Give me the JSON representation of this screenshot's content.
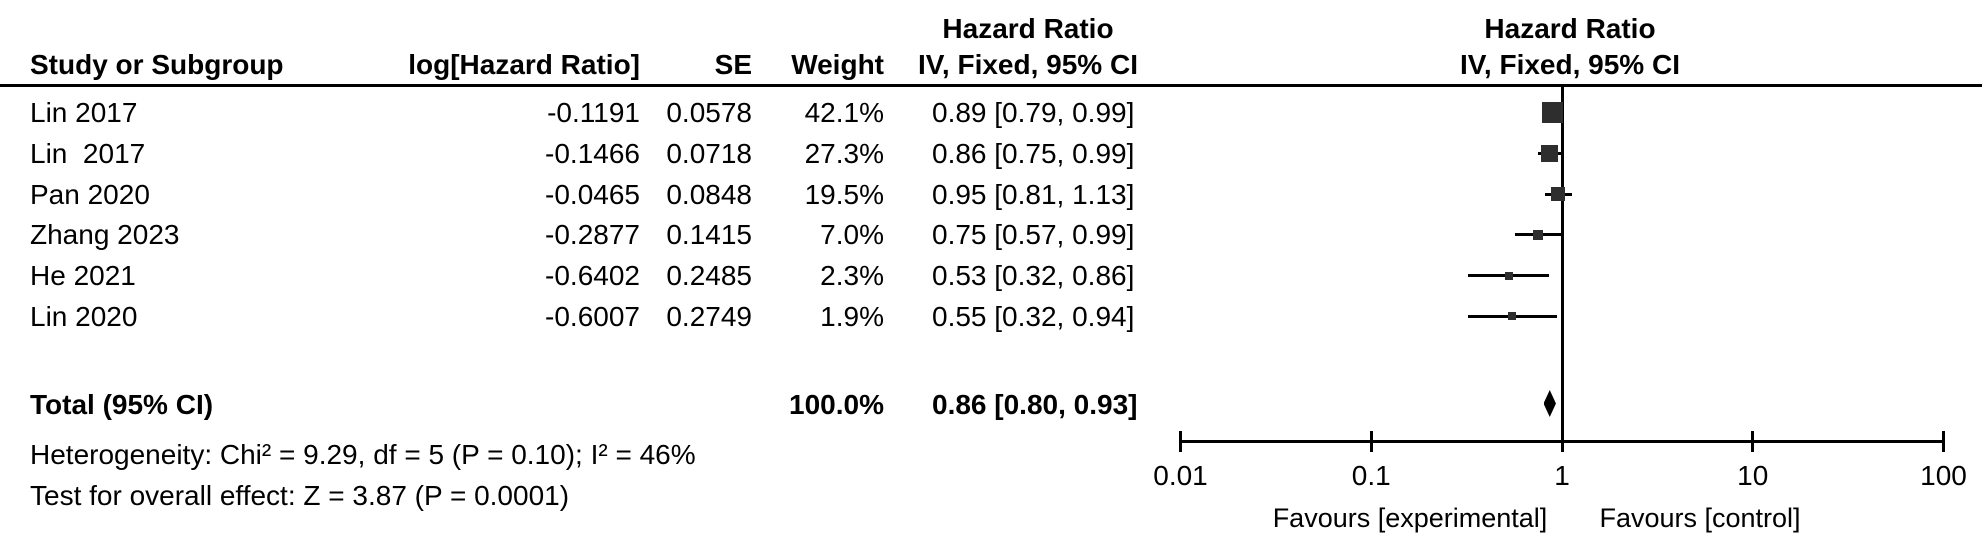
{
  "table": {
    "hr_header_line1": "Hazard Ratio",
    "col_headers": {
      "study": "Study or Subgroup",
      "log_hr": "log[Hazard Ratio]",
      "se": "SE",
      "weight": "Weight",
      "ci": "IV, Fixed, 95% CI"
    },
    "rows": [
      {
        "study": "Lin 2017",
        "log_hr": "-0.1191",
        "se": "0.0578",
        "weight": "42.1%",
        "ci": "0.89 [0.79, 0.99]"
      },
      {
        "study": "Lin  2017",
        "log_hr": "-0.1466",
        "se": "0.0718",
        "weight": "27.3%",
        "ci": "0.86 [0.75, 0.99]"
      },
      {
        "study": "Pan 2020",
        "log_hr": "-0.0465",
        "se": "0.0848",
        "weight": "19.5%",
        "ci": "0.95 [0.81, 1.13]"
      },
      {
        "study": "Zhang 2023",
        "log_hr": "-0.2877",
        "se": "0.1415",
        "weight": "7.0%",
        "ci": "0.75 [0.57, 0.99]"
      },
      {
        "study": "He 2021",
        "log_hr": "-0.6402",
        "se": "0.2485",
        "weight": "2.3%",
        "ci": "0.53 [0.32, 0.86]"
      },
      {
        "study": "Lin 2020",
        "log_hr": "-0.6007",
        "se": "0.2749",
        "weight": "1.9%",
        "ci": "0.55 [0.32, 0.94]"
      }
    ],
    "total_row": {
      "label": "Total (95% CI)",
      "weight": "100.0%",
      "ci": "0.86 [0.80, 0.93]"
    },
    "footnotes": {
      "heterogeneity": "Heterogeneity: Chi² = 9.29, df = 5 (P = 0.10); I² = 46%",
      "overall_effect": "Test for overall effect: Z = 3.87 (P = 0.0001)"
    }
  },
  "plot": {
    "header_line1": "Hazard Ratio",
    "header_line2": "IV, Fixed, 95% CI",
    "tick_labels": [
      "0.01",
      "0.1",
      "1",
      "10",
      "100"
    ],
    "favours_left": "Favours [experimental]",
    "favours_right": "Favours [control]"
  },
  "colors": {
    "text": "#000000",
    "square": "#2e2e2e",
    "line": "#000000"
  },
  "chart_data": {
    "type": "forest",
    "effect_measure": "Hazard Ratio",
    "model": "IV, Fixed, 95% CI",
    "x_scale": "log10",
    "xlim": [
      0.01,
      100
    ],
    "x_ticks": [
      0.01,
      0.1,
      1,
      10,
      100
    ],
    "null_line": 1,
    "studies": [
      {
        "label": "Lin 2017",
        "log_hr": -0.1191,
        "se": 0.0578,
        "weight_pct": 42.1,
        "hr": 0.89,
        "ci_low": 0.79,
        "ci_high": 0.99
      },
      {
        "label": "Lin  2017",
        "log_hr": -0.1466,
        "se": 0.0718,
        "weight_pct": 27.3,
        "hr": 0.86,
        "ci_low": 0.75,
        "ci_high": 0.99
      },
      {
        "label": "Pan 2020",
        "log_hr": -0.0465,
        "se": 0.0848,
        "weight_pct": 19.5,
        "hr": 0.95,
        "ci_low": 0.81,
        "ci_high": 1.13
      },
      {
        "label": "Zhang 2023",
        "log_hr": -0.2877,
        "se": 0.1415,
        "weight_pct": 7.0,
        "hr": 0.75,
        "ci_low": 0.57,
        "ci_high": 0.99
      },
      {
        "label": "He 2021",
        "log_hr": -0.6402,
        "se": 0.2485,
        "weight_pct": 2.3,
        "hr": 0.53,
        "ci_low": 0.32,
        "ci_high": 0.86
      },
      {
        "label": "Lin 2020",
        "log_hr": -0.6007,
        "se": 0.2749,
        "weight_pct": 1.9,
        "hr": 0.55,
        "ci_low": 0.32,
        "ci_high": 0.94
      }
    ],
    "total": {
      "label": "Total (95% CI)",
      "weight_pct": 100.0,
      "hr": 0.86,
      "ci_low": 0.8,
      "ci_high": 0.93
    },
    "heterogeneity": "Heterogeneity: Chi² = 9.29, df = 5 (P = 0.10); I² = 46%",
    "overall_effect": "Test for overall effect: Z = 3.87 (P = 0.0001)",
    "favours_left": "Favours [experimental]",
    "favours_right": "Favours [control]",
    "legend_position": "none",
    "grid": false
  }
}
